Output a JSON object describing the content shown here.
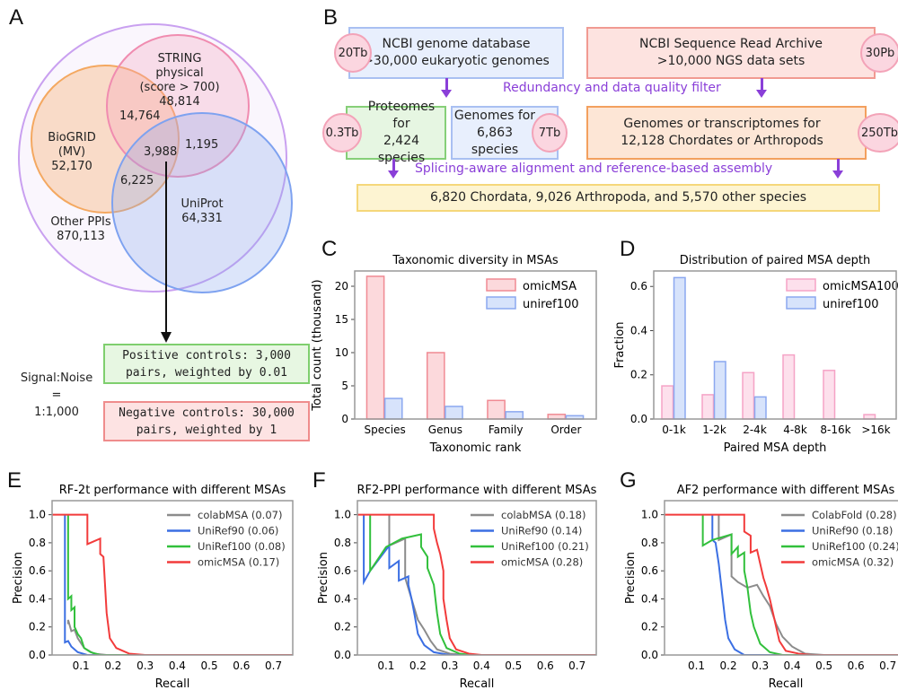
{
  "panels": {
    "a": "A",
    "b": "B",
    "c": "C",
    "d": "D",
    "e": "E",
    "f": "F",
    "g": "G"
  },
  "venn": {
    "string": [
      "STRING",
      "physical",
      "(score > 700)",
      "48,814"
    ],
    "biogrid": [
      "BioGRID",
      "(MV)",
      "52,170"
    ],
    "uniprot": [
      "UniProt",
      "64,331"
    ],
    "other": [
      "Other PPIs",
      "870,113"
    ],
    "bg_string": "14,764",
    "all": "3,988",
    "string_uniprot": "1,195",
    "bg_uniprot": "6,225",
    "signal_noise": [
      "Signal:Noise",
      "=",
      "1:1,000"
    ],
    "positive": [
      "Positive controls: 3,000",
      "pairs, weighted by 0.01"
    ],
    "negative": [
      "Negative controls: 30,000",
      "pairs, weighted by 1"
    ],
    "colors": {
      "outer": "#c9a0f0",
      "string": "#f08cb0",
      "biogrid": "#f4a860",
      "uniprot": "#7ea2f0"
    }
  },
  "pipeline": {
    "ncbi_genome": [
      "NCBI genome database",
      ">30,000 eukaryotic genomes"
    ],
    "ncbi_genome_size": "20Tb",
    "sra": [
      "NCBI Sequence Read Archive",
      ">10,000 NGS data sets"
    ],
    "sra_size": "30Pb",
    "filter": "Redundancy and data quality filter",
    "proteomes": [
      "Proteomes for",
      "2,424 species"
    ],
    "proteomes_size": "0.3Tb",
    "genomes": [
      "Genomes for",
      "6,863 species"
    ],
    "genomes_size": "7Tb",
    "transcriptomes": [
      "Genomes or transcriptomes for",
      "12,128 Chordates or Arthropods"
    ],
    "transcriptomes_size": "250Tb",
    "assembly": "Splicing-aware alignment and reference-based assembly",
    "result": "6,820 Chordata, 9,026 Arthropoda, and 5,570 other species"
  },
  "chart_data": [
    {
      "id": "c",
      "type": "bar",
      "title": "Taxonomic diversity in MSAs",
      "xlabel": "Taxonomic rank",
      "ylabel": "Total count (thousand)",
      "categories": [
        "Species",
        "Genus",
        "Family",
        "Order"
      ],
      "ylim": [
        0,
        22.3
      ],
      "yticks": [
        0,
        5,
        10,
        15,
        20
      ],
      "legend": "top-right",
      "grid": false,
      "series": [
        {
          "name": "omicMSA",
          "values": [
            21.5,
            10,
            2.8,
            0.7
          ],
          "fill": "#fcd9dc",
          "stroke": "#f08a93"
        },
        {
          "name": "uniref100",
          "values": [
            3.1,
            1.9,
            1.1,
            0.5
          ],
          "fill": "#d7e3fb",
          "stroke": "#8ba8f0"
        }
      ]
    },
    {
      "id": "d",
      "type": "bar",
      "title": "Distribution of paired MSA depth",
      "xlabel": "Paired MSA depth",
      "ylabel": "Fraction",
      "categories": [
        "0-1k",
        "1-2k",
        "2-4k",
        "4-8k",
        "8-16k",
        ">16k"
      ],
      "ylim": [
        0,
        0.67
      ],
      "yticks": [
        0.0,
        0.2,
        0.4,
        0.6
      ],
      "legend": "top-right",
      "grid": false,
      "series": [
        {
          "name": "omicMSA100",
          "values": [
            0.15,
            0.11,
            0.21,
            0.29,
            0.22,
            0.02
          ],
          "fill": "#fde0ec",
          "stroke": "#f5a3c6"
        },
        {
          "name": "uniref100",
          "values": [
            0.64,
            0.26,
            0.1,
            0,
            0,
            0
          ],
          "fill": "#d7e3fb",
          "stroke": "#8ba8f0"
        }
      ]
    },
    {
      "id": "e",
      "type": "line",
      "title": "RF-2t performance with different MSAs",
      "xlabel": "Recall",
      "ylabel": "Precision",
      "xlim": [
        0.01,
        0.76
      ],
      "ylim": [
        0,
        1.1
      ],
      "xticks": [
        0.1,
        0.2,
        0.3,
        0.4,
        0.5,
        0.6,
        0.7
      ],
      "yticks": [
        0.0,
        0.2,
        0.4,
        0.6,
        0.8,
        1.0
      ],
      "legend": "top-right",
      "grid": false,
      "series": [
        {
          "name": "colabMSA (0.07)",
          "color": "#8c8c8c",
          "points": [
            [
              0.06,
              0.22
            ],
            [
              0.06,
              0.25
            ],
            [
              0.07,
              0.17
            ],
            [
              0.08,
              0.18
            ],
            [
              0.09,
              0.12
            ],
            [
              0.11,
              0.05
            ],
            [
              0.14,
              0.01
            ],
            [
              0.18,
              0
            ],
            [
              0.76,
              0
            ]
          ]
        },
        {
          "name": "UniRef90 (0.06)",
          "color": "#3b6fe3",
          "points": [
            [
              0.05,
              1
            ],
            [
              0.05,
              0.09
            ],
            [
              0.06,
              0.1
            ],
            [
              0.07,
              0.06
            ],
            [
              0.09,
              0.02
            ],
            [
              0.12,
              0
            ],
            [
              0.76,
              0
            ]
          ]
        },
        {
          "name": "UniRef100 (0.08)",
          "color": "#32c03c",
          "points": [
            [
              0.06,
              1
            ],
            [
              0.06,
              0.4
            ],
            [
              0.07,
              0.42
            ],
            [
              0.07,
              0.32
            ],
            [
              0.08,
              0.34
            ],
            [
              0.08,
              0.2
            ],
            [
              0.09,
              0.15
            ],
            [
              0.1,
              0.12
            ],
            [
              0.11,
              0.05
            ],
            [
              0.13,
              0.02
            ],
            [
              0.16,
              0
            ],
            [
              0.76,
              0
            ]
          ]
        },
        {
          "name": "omicMSA (0.17)",
          "color": "#f23b3b",
          "points": [
            [
              0.01,
              1
            ],
            [
              0.12,
              1
            ],
            [
              0.12,
              0.79
            ],
            [
              0.16,
              0.83
            ],
            [
              0.16,
              0.72
            ],
            [
              0.17,
              0.7
            ],
            [
              0.18,
              0.3
            ],
            [
              0.19,
              0.12
            ],
            [
              0.21,
              0.05
            ],
            [
              0.25,
              0.01
            ],
            [
              0.3,
              0
            ],
            [
              0.76,
              0
            ]
          ]
        }
      ]
    },
    {
      "id": "f",
      "type": "line",
      "title": "RF2-PPI performance with different MSAs",
      "xlabel": "Recall",
      "ylabel": "Precision",
      "xlim": [
        0.01,
        0.76
      ],
      "ylim": [
        0,
        1.1
      ],
      "xticks": [
        0.1,
        0.2,
        0.3,
        0.4,
        0.5,
        0.6,
        0.7
      ],
      "yticks": [
        0.0,
        0.2,
        0.4,
        0.6,
        0.8,
        1.0
      ],
      "legend": "top-right",
      "grid": false,
      "series": [
        {
          "name": "colabMSA (0.18)",
          "color": "#8c8c8c",
          "points": [
            [
              0.11,
              1
            ],
            [
              0.11,
              0.78
            ],
            [
              0.16,
              0.83
            ],
            [
              0.16,
              0.55
            ],
            [
              0.18,
              0.4
            ],
            [
              0.2,
              0.25
            ],
            [
              0.22,
              0.18
            ],
            [
              0.24,
              0.1
            ],
            [
              0.26,
              0.04
            ],
            [
              0.3,
              0.01
            ],
            [
              0.35,
              0
            ],
            [
              0.76,
              0
            ]
          ]
        },
        {
          "name": "UniRef90 (0.14)",
          "color": "#3b6fe3",
          "points": [
            [
              0.03,
              1
            ],
            [
              0.03,
              0.52
            ],
            [
              0.05,
              0.6
            ],
            [
              0.11,
              0.78
            ],
            [
              0.11,
              0.62
            ],
            [
              0.14,
              0.67
            ],
            [
              0.14,
              0.53
            ],
            [
              0.17,
              0.56
            ],
            [
              0.17,
              0.5
            ],
            [
              0.18,
              0.4
            ],
            [
              0.19,
              0.28
            ],
            [
              0.2,
              0.15
            ],
            [
              0.22,
              0.07
            ],
            [
              0.25,
              0.02
            ],
            [
              0.3,
              0
            ],
            [
              0.76,
              0
            ]
          ]
        },
        {
          "name": "UniRef100 (0.21)",
          "color": "#32c03c",
          "points": [
            [
              0.05,
              1
            ],
            [
              0.05,
              0.6
            ],
            [
              0.1,
              0.77
            ],
            [
              0.15,
              0.83
            ],
            [
              0.21,
              0.86
            ],
            [
              0.21,
              0.77
            ],
            [
              0.23,
              0.7
            ],
            [
              0.23,
              0.62
            ],
            [
              0.25,
              0.5
            ],
            [
              0.26,
              0.3
            ],
            [
              0.27,
              0.15
            ],
            [
              0.29,
              0.05
            ],
            [
              0.33,
              0.01
            ],
            [
              0.37,
              0
            ],
            [
              0.76,
              0
            ]
          ]
        },
        {
          "name": "omicMSA (0.28)",
          "color": "#f23b3b",
          "points": [
            [
              0.01,
              1
            ],
            [
              0.25,
              1
            ],
            [
              0.25,
              0.9
            ],
            [
              0.26,
              0.8
            ],
            [
              0.27,
              0.72
            ],
            [
              0.28,
              0.6
            ],
            [
              0.28,
              0.4
            ],
            [
              0.29,
              0.25
            ],
            [
              0.3,
              0.12
            ],
            [
              0.32,
              0.04
            ],
            [
              0.36,
              0.01
            ],
            [
              0.4,
              0
            ],
            [
              0.76,
              0
            ]
          ]
        }
      ]
    },
    {
      "id": "g",
      "type": "line",
      "title": "AF2 performance with different MSAs",
      "xlabel": "Recall",
      "ylabel": "Precision",
      "xlim": [
        0.0,
        0.76
      ],
      "ylim": [
        0,
        1.1
      ],
      "xticks": [
        0.1,
        0.2,
        0.3,
        0.4,
        0.5,
        0.6,
        0.7
      ],
      "yticks": [
        0.0,
        0.2,
        0.4,
        0.6,
        0.8,
        1.0
      ],
      "legend": "top-right",
      "grid": false,
      "series": [
        {
          "name": "ColabFold (0.28)",
          "color": "#8c8c8c",
          "points": [
            [
              0.17,
              1
            ],
            [
              0.17,
              0.82
            ],
            [
              0.21,
              0.86
            ],
            [
              0.21,
              0.56
            ],
            [
              0.23,
              0.52
            ],
            [
              0.26,
              0.48
            ],
            [
              0.29,
              0.5
            ],
            [
              0.31,
              0.42
            ],
            [
              0.33,
              0.35
            ],
            [
              0.35,
              0.22
            ],
            [
              0.37,
              0.13
            ],
            [
              0.4,
              0.06
            ],
            [
              0.44,
              0.01
            ],
            [
              0.5,
              0
            ],
            [
              0.76,
              0
            ]
          ]
        },
        {
          "name": "UniRef90 (0.18)",
          "color": "#3b6fe3",
          "points": [
            [
              0.15,
              1
            ],
            [
              0.15,
              0.82
            ],
            [
              0.16,
              0.8
            ],
            [
              0.17,
              0.65
            ],
            [
              0.18,
              0.45
            ],
            [
              0.19,
              0.25
            ],
            [
              0.2,
              0.12
            ],
            [
              0.22,
              0.04
            ],
            [
              0.25,
              0
            ],
            [
              0.76,
              0
            ]
          ]
        },
        {
          "name": "UniRef100 (0.24)",
          "color": "#32c03c",
          "points": [
            [
              0.12,
              1
            ],
            [
              0.12,
              0.78
            ],
            [
              0.15,
              0.82
            ],
            [
              0.21,
              0.86
            ],
            [
              0.21,
              0.72
            ],
            [
              0.23,
              0.77
            ],
            [
              0.23,
              0.7
            ],
            [
              0.25,
              0.73
            ],
            [
              0.25,
              0.6
            ],
            [
              0.26,
              0.48
            ],
            [
              0.27,
              0.3
            ],
            [
              0.28,
              0.2
            ],
            [
              0.3,
              0.08
            ],
            [
              0.33,
              0.02
            ],
            [
              0.37,
              0
            ],
            [
              0.76,
              0
            ]
          ]
        },
        {
          "name": "omicMSA (0.32)",
          "color": "#f23b3b",
          "points": [
            [
              0,
              1
            ],
            [
              0.25,
              1
            ],
            [
              0.25,
              0.88
            ],
            [
              0.27,
              0.85
            ],
            [
              0.27,
              0.73
            ],
            [
              0.29,
              0.75
            ],
            [
              0.3,
              0.65
            ],
            [
              0.31,
              0.55
            ],
            [
              0.32,
              0.48
            ],
            [
              0.33,
              0.4
            ],
            [
              0.34,
              0.3
            ],
            [
              0.35,
              0.2
            ],
            [
              0.36,
              0.1
            ],
            [
              0.38,
              0.03
            ],
            [
              0.42,
              0.01
            ],
            [
              0.46,
              0
            ],
            [
              0.76,
              0
            ]
          ]
        }
      ]
    }
  ]
}
